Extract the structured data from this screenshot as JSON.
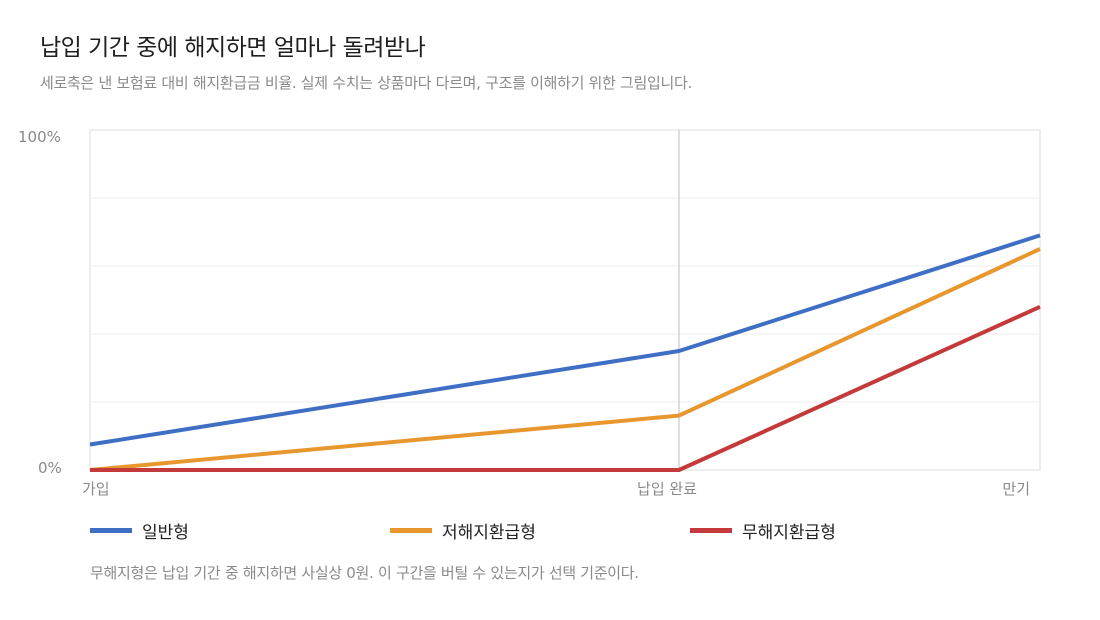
{
  "header": {
    "title": "납입 기간 중에 해지하면 얼마나 돌려받나",
    "subtitle": "세로축은 낸 보험료 대비 해지환급금 비율. 실제 수치는 상품마다 다르며, 구조를 이해하기 위한 그림입니다."
  },
  "chart_data": {
    "type": "line",
    "x": [
      0,
      0.62,
      1
    ],
    "x_tick_labels": [
      "가입",
      "납입 완료",
      "만기"
    ],
    "y_tick_labels": [
      "0%",
      "100%"
    ],
    "ylim": [
      0,
      100
    ],
    "grid": true,
    "series": [
      {
        "name": "일반형",
        "color": "#3f6fc4",
        "points": [
          [
            0,
            7.5
          ],
          [
            0.62,
            35
          ],
          [
            1,
            69
          ]
        ]
      },
      {
        "name": "저해지환급형",
        "color": "#e8962e",
        "points": [
          [
            0,
            0
          ],
          [
            0.62,
            16
          ],
          [
            1,
            65
          ]
        ]
      },
      {
        "name": "무해지환급형",
        "color": "#c43a3a",
        "points": [
          [
            0,
            0
          ],
          [
            0.62,
            0
          ],
          [
            1,
            48
          ]
        ]
      }
    ]
  },
  "footnote": "무해지형은 납입 기간 중 해지하면 사실상 0원. 이 구간을 버틸 수 있는지가 선택 기준이다."
}
